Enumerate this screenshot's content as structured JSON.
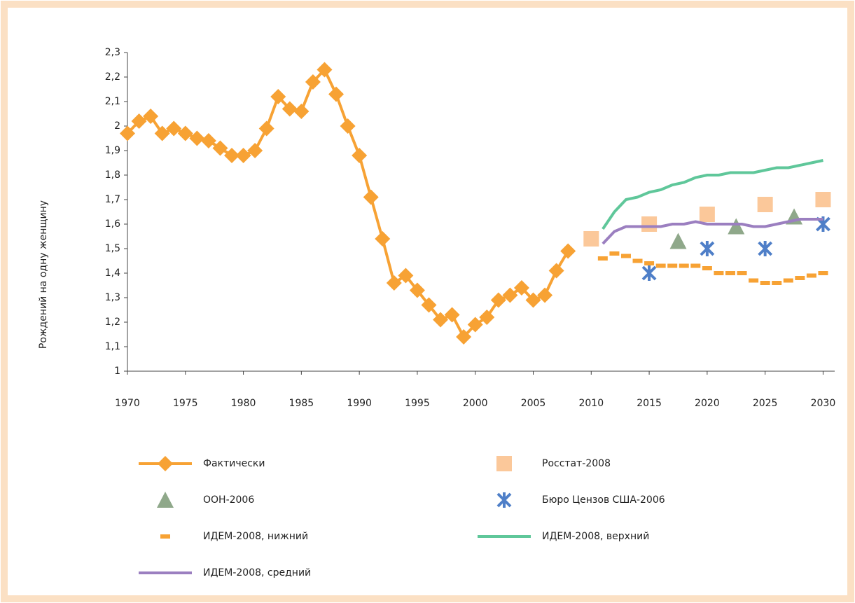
{
  "chart_data": {
    "type": "line",
    "y_label": "Рождений на одну женщину",
    "xlim": [
      1970,
      2031
    ],
    "ylim": [
      1,
      2.3
    ],
    "xticks": [
      1970,
      1975,
      1980,
      1985,
      1990,
      1995,
      2000,
      2005,
      2010,
      2015,
      2020,
      2025,
      2030
    ],
    "yticks": [
      1,
      {
        "value": 1.1,
        "label": "1,1"
      },
      {
        "value": 1.2,
        "label": "1,2"
      },
      {
        "value": 1.3,
        "label": "1,3"
      },
      {
        "value": 1.4,
        "label": "1,4"
      },
      {
        "value": 1.5,
        "label": "1,5"
      },
      {
        "value": 1.6,
        "label": "1,6"
      },
      {
        "value": 1.7,
        "label": "1,7"
      },
      {
        "value": 1.8,
        "label": "1,8"
      },
      {
        "value": 1.9,
        "label": "1,9"
      },
      2,
      {
        "value": 2.1,
        "label": "2,1"
      },
      {
        "value": 2.2,
        "label": "2,2"
      },
      {
        "value": 2.3,
        "label": "2,3"
      }
    ],
    "series": [
      {
        "name": "Фактически",
        "color": "#f7a234",
        "marker": "diamond",
        "line": true,
        "x": [
          1970,
          1971,
          1972,
          1973,
          1974,
          1975,
          1976,
          1977,
          1978,
          1979,
          1980,
          1981,
          1982,
          1983,
          1984,
          1985,
          1986,
          1987,
          1988,
          1989,
          1990,
          1991,
          1992,
          1993,
          1994,
          1995,
          1996,
          1997,
          1998,
          1999,
          2000,
          2001,
          2002,
          2003,
          2004,
          2005,
          2006,
          2007,
          2008
        ],
        "values": [
          1.97,
          2.02,
          2.04,
          1.97,
          1.99,
          1.97,
          1.95,
          1.94,
          1.91,
          1.88,
          1.88,
          1.9,
          1.99,
          2.12,
          2.07,
          2.06,
          2.18,
          2.23,
          2.13,
          2.0,
          1.88,
          1.71,
          1.54,
          1.36,
          1.39,
          1.33,
          1.27,
          1.21,
          1.23,
          1.14,
          1.19,
          1.22,
          1.29,
          1.31,
          1.34,
          1.29,
          1.31,
          1.41,
          1.49
        ]
      },
      {
        "name": "Росстат-2008",
        "color": "#fbc89a",
        "marker": "square",
        "line": false,
        "x": [
          2010,
          2015,
          2020,
          2025,
          2030
        ],
        "values": [
          1.54,
          1.6,
          1.64,
          1.68,
          1.7
        ]
      },
      {
        "name": "ООН-2006",
        "color": "#8fa88a",
        "marker": "triangle",
        "line": false,
        "x": [
          2017.5,
          2022.5,
          2027.5
        ],
        "values": [
          1.53,
          1.59,
          1.63
        ]
      },
      {
        "name": "Бюро Цензов США-2006",
        "color": "#4f7fc8",
        "marker": "star",
        "line": false,
        "x": [
          2015,
          2020,
          2025,
          2030
        ],
        "values": [
          1.4,
          1.5,
          1.5,
          1.6
        ]
      },
      {
        "name": "ИДЕМ-2008, нижний",
        "color": "#f7a234",
        "marker": "dash",
        "line": false,
        "x": [
          2011,
          2012,
          2013,
          2014,
          2015,
          2016,
          2017,
          2018,
          2019,
          2020,
          2021,
          2022,
          2023,
          2024,
          2025,
          2026,
          2027,
          2028,
          2029,
          2030
        ],
        "values": [
          1.46,
          1.48,
          1.47,
          1.45,
          1.44,
          1.43,
          1.43,
          1.43,
          1.43,
          1.42,
          1.4,
          1.4,
          1.4,
          1.37,
          1.36,
          1.36,
          1.37,
          1.38,
          1.39,
          1.4
        ]
      },
      {
        "name": "ИДЕМ-2008, верхний",
        "color": "#5fc79a",
        "marker": "none",
        "line": true,
        "x": [
          2011,
          2012,
          2013,
          2014,
          2015,
          2016,
          2017,
          2018,
          2019,
          2020,
          2021,
          2022,
          2023,
          2024,
          2025,
          2026,
          2027,
          2028,
          2029,
          2030
        ],
        "values": [
          1.58,
          1.65,
          1.7,
          1.71,
          1.73,
          1.74,
          1.76,
          1.77,
          1.79,
          1.8,
          1.8,
          1.81,
          1.81,
          1.81,
          1.82,
          1.83,
          1.83,
          1.84,
          1.85,
          1.86
        ]
      },
      {
        "name": "ИДЕМ-2008, средний",
        "color": "#9b7fc0",
        "marker": "none",
        "line": true,
        "x": [
          2011,
          2012,
          2013,
          2014,
          2015,
          2016,
          2017,
          2018,
          2019,
          2020,
          2021,
          2022,
          2023,
          2024,
          2025,
          2026,
          2027,
          2028,
          2029,
          2030
        ],
        "values": [
          1.52,
          1.57,
          1.59,
          1.59,
          1.59,
          1.59,
          1.6,
          1.6,
          1.61,
          1.6,
          1.6,
          1.6,
          1.6,
          1.59,
          1.59,
          1.6,
          1.61,
          1.62,
          1.62,
          1.62
        ]
      }
    ]
  }
}
